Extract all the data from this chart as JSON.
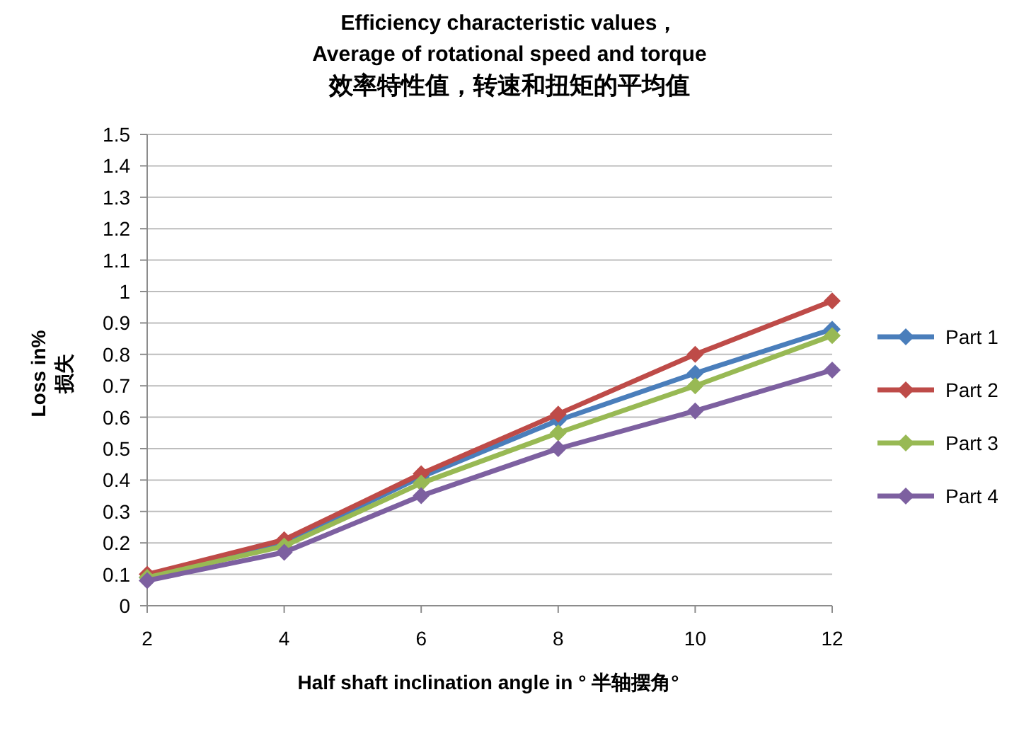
{
  "chart_data": {
    "type": "line",
    "title": "Efficiency characteristic values，Average of rotational speed and torque",
    "subtitle": "效率特性值，转速和扭矩的平均值",
    "xlabel": "Half shaft inclination angle in ° 半轴摆角°",
    "ylabel": "Loss in% 损失",
    "x": [
      2,
      4,
      6,
      8,
      10,
      12
    ],
    "xlim": [
      2,
      12
    ],
    "xticks": [
      2,
      4,
      6,
      8,
      10,
      12
    ],
    "ylim": [
      0,
      1.5
    ],
    "yticks": [
      0,
      0.1,
      0.2,
      0.3,
      0.4,
      0.5,
      0.6,
      0.7,
      0.8,
      0.9,
      1,
      1.1,
      1.2,
      1.3,
      1.4,
      1.5
    ],
    "grid": "y",
    "legend": "right",
    "marker": "diamond",
    "line_style": "solid",
    "series": [
      {
        "name": "Part 1",
        "color": "#4a7ebb",
        "values": [
          0.09,
          0.2,
          0.41,
          0.59,
          0.74,
          0.88
        ]
      },
      {
        "name": "Part 2",
        "color": "#be4b48",
        "values": [
          0.1,
          0.21,
          0.42,
          0.61,
          0.8,
          0.97
        ]
      },
      {
        "name": "Part 3",
        "color": "#98b954",
        "values": [
          0.09,
          0.19,
          0.39,
          0.55,
          0.7,
          0.86
        ]
      },
      {
        "name": "Part 4",
        "color": "#7d60a0",
        "values": [
          0.08,
          0.17,
          0.35,
          0.5,
          0.62,
          0.75
        ]
      }
    ]
  }
}
